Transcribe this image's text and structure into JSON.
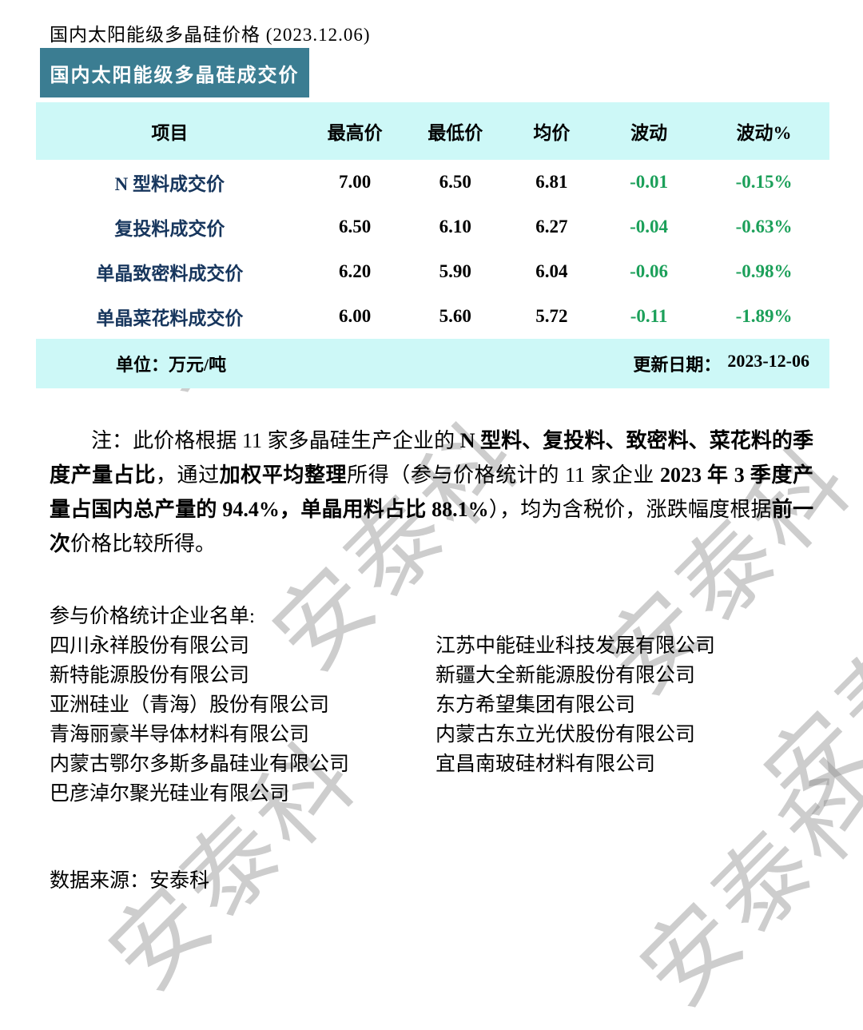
{
  "page": {
    "title": "国内太阳能级多晶硅价格 (2023.12.06)",
    "watermark_text": "安泰科"
  },
  "colors": {
    "card_header_teal": "#3B7D92",
    "table_band_cyan": "#CDF8F7",
    "row_label_navy": "#17365D",
    "change_green": "#1CA05A",
    "watermark_gray": "#919191"
  },
  "table": {
    "card_title": "国内太阳能级多晶硅成交价",
    "headers": [
      "项目",
      "最高价",
      "最低价",
      "均价",
      "波动",
      "波动%"
    ],
    "rows": [
      {
        "name": "N 型料成交价",
        "high": "7.00",
        "low": "6.50",
        "avg": "6.81",
        "change": "-0.01",
        "change_pct": "-0.15%"
      },
      {
        "name": "复投料成交价",
        "high": "6.50",
        "low": "6.10",
        "avg": "6.27",
        "change": "-0.04",
        "change_pct": "-0.63%"
      },
      {
        "name": "单晶致密料成交价",
        "high": "6.20",
        "low": "5.90",
        "avg": "6.04",
        "change": "-0.06",
        "change_pct": "-0.98%"
      },
      {
        "name": "单晶菜花料成交价",
        "high": "6.00",
        "low": "5.60",
        "avg": "5.72",
        "change": "-0.11",
        "change_pct": "-1.89%"
      }
    ],
    "unit_label": "单位：万元/吨",
    "update_label": "更新日期：",
    "update_date": "2023-12-06"
  },
  "note": {
    "segments": [
      {
        "text": "注：此价格根据 11 家多晶硅生产企业的 ",
        "bold": false
      },
      {
        "text": "N 型料、复投料、致密料、菜花料的季度产量占比",
        "bold": true
      },
      {
        "text": "，通过",
        "bold": false
      },
      {
        "text": "加权平均整理",
        "bold": true
      },
      {
        "text": "所得（参与价格统计的 11 家企业 ",
        "bold": false
      },
      {
        "text": "2023 年 3 季度产量占国内总产量的 94.4%，单晶用料占比 88.1%",
        "bold": true
      },
      {
        "text": "），均为含税价，涨跌幅度根据",
        "bold": false
      },
      {
        "text": "前一次",
        "bold": true
      },
      {
        "text": "价格比较所得。",
        "bold": false
      }
    ]
  },
  "companies": {
    "list_title": "参与价格统计企业名单:",
    "left": [
      "四川永祥股份有限公司",
      "新特能源股份有限公司",
      "亚洲硅业（青海）股份有限公司",
      "青海丽豪半导体材料有限公司",
      "内蒙古鄂尔多斯多晶硅业有限公司",
      "巴彦淖尔聚光硅业有限公司"
    ],
    "right": [
      "江苏中能硅业科技发展有限公司",
      "新疆大全新能源股份有限公司",
      "东方希望集团有限公司",
      "内蒙古东立光伏股份有限公司",
      "宜昌南玻硅材料有限公司"
    ]
  },
  "source": {
    "label": "数据来源：",
    "value": "安泰科"
  }
}
